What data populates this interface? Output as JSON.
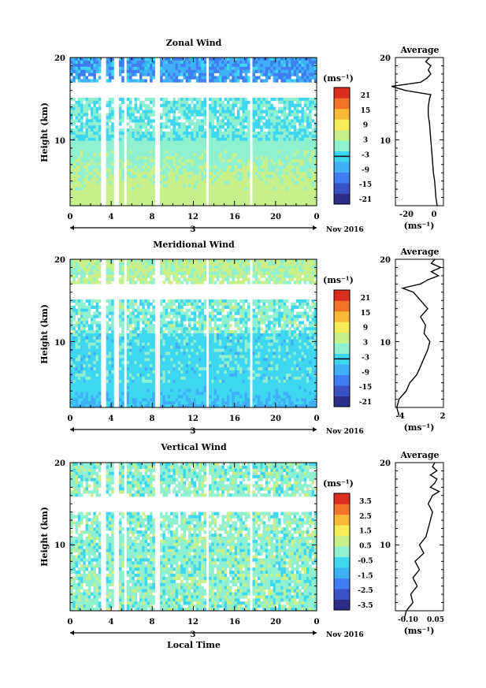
{
  "chart_data": [
    {
      "type": "heatmap",
      "title": "Zonal Wind",
      "ylabel": "Height (km)",
      "x_ticks": [
        "0",
        "4",
        "8",
        "12",
        "16",
        "20",
        "0"
      ],
      "y_ticks": [
        "20",
        "10"
      ],
      "date_label": "3",
      "month_label": "Nov 2016",
      "colorbar_unit": "(ms⁻¹)",
      "colorbar_ticks": [
        "21",
        "15",
        "9",
        "3",
        "-3",
        "-9",
        "-15",
        "-21"
      ],
      "colorbar_range": [
        -24,
        24
      ],
      "avg_title": "Average",
      "avg_y_ticks": [
        "20",
        "10"
      ],
      "avg_x_ticks": [
        "-20",
        "0"
      ],
      "avg_xlim": [
        -30,
        8
      ],
      "avg_unit": "(ms⁻¹)",
      "avg_profile": {
        "height_km": [
          2,
          3,
          4,
          5,
          6,
          7,
          8,
          9,
          10,
          11,
          12,
          13,
          14,
          15,
          15.5,
          16,
          16.5,
          17,
          17.5,
          18,
          18.5,
          19,
          19.5,
          20
        ],
        "value": [
          3,
          2,
          1.5,
          1,
          0,
          -0.5,
          -1,
          -1.5,
          -2,
          -2.5,
          -3,
          -4,
          -4,
          -3,
          -2,
          -22,
          -33,
          -10,
          -5,
          -2,
          -4,
          -2,
          -6,
          -3
        ]
      }
    },
    {
      "type": "heatmap",
      "title": "Meridional Wind",
      "ylabel": "Height (km)",
      "x_ticks": [
        "0",
        "4",
        "8",
        "12",
        "16",
        "20",
        "0"
      ],
      "y_ticks": [
        "20",
        "10"
      ],
      "date_label": "3",
      "month_label": "Nov 2016",
      "colorbar_unit": "(ms⁻¹)",
      "colorbar_ticks": [
        "21",
        "15",
        "9",
        "3",
        "-3",
        "-9",
        "-15",
        "-21"
      ],
      "colorbar_range": [
        -24,
        24
      ],
      "avg_title": "Average",
      "avg_y_ticks": [
        "20",
        "10"
      ],
      "avg_x_ticks": [
        "-4",
        "2"
      ],
      "avg_xlim": [
        -4.5,
        2.2
      ],
      "avg_unit": "(ms⁻¹)",
      "avg_profile": {
        "height_km": [
          1,
          2,
          3,
          4,
          5,
          6,
          7,
          8,
          9,
          10,
          11,
          12,
          13,
          14,
          15,
          16,
          16.5,
          17,
          17.5,
          18,
          18.5,
          19,
          19.5,
          20
        ],
        "value": [
          -4,
          -4.3,
          -4,
          -3,
          -2.5,
          -1.5,
          -1,
          -0.5,
          0,
          0.3,
          -0.5,
          -0.3,
          -1,
          0,
          -1,
          -2,
          -3.5,
          -1,
          0,
          1.5,
          0.5,
          1.8,
          0.5,
          1
        ]
      }
    },
    {
      "type": "heatmap",
      "title": "Vertical Wind",
      "ylabel": "Height (km)",
      "xlabel": "Local Time",
      "x_ticks": [
        "0",
        "4",
        "8",
        "12",
        "16",
        "20",
        "0"
      ],
      "y_ticks": [
        "20",
        "10"
      ],
      "date_label": "3",
      "month_label": "Nov 2016",
      "colorbar_unit": "(ms⁻¹)",
      "colorbar_ticks": [
        "3.5",
        "2.5",
        "1.5",
        "0.5",
        "-0.5",
        "-1.5",
        "-2.5",
        "-3.5"
      ],
      "colorbar_range": [
        -4,
        4
      ],
      "avg_title": "Average",
      "avg_y_ticks": [
        "20",
        "10"
      ],
      "avg_x_ticks": [
        "-0.10",
        "0.05"
      ],
      "avg_xlim": [
        -0.14,
        0.08
      ],
      "avg_unit": "(ms⁻¹)",
      "avg_profile": {
        "height_km": [
          1,
          2,
          3,
          4,
          5,
          6,
          7,
          8,
          9,
          10,
          11,
          12,
          13,
          14,
          15,
          16,
          16.5,
          17,
          17.5,
          18,
          18.5,
          19,
          19.5,
          20
        ],
        "value": [
          -0.1,
          -0.09,
          -0.06,
          -0.07,
          -0.04,
          -0.06,
          -0.03,
          -0.05,
          -0.01,
          -0.03,
          0.0,
          0.01,
          0.02,
          0.03,
          0.01,
          0.03,
          0.06,
          0.02,
          0.04,
          0.05,
          0.02,
          0.05,
          0.03,
          0.04
        ]
      }
    }
  ]
}
